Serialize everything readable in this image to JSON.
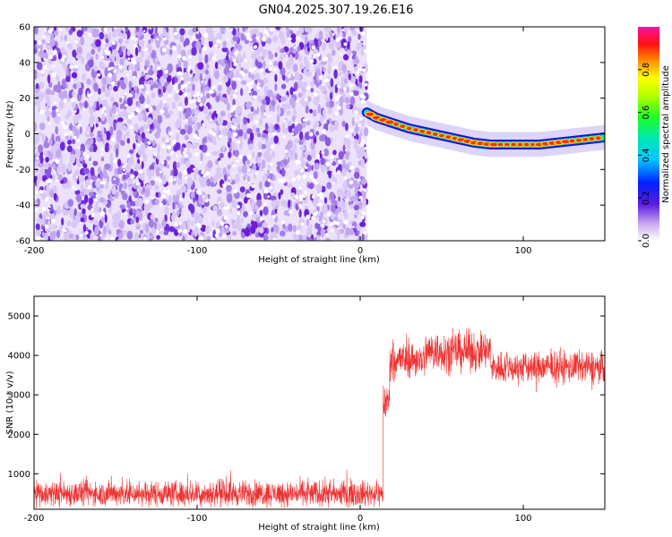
{
  "title": "GN04.2025.307.19.26.E16",
  "chart_data": [
    {
      "type": "heatmap",
      "name": "spectrogram",
      "xlabel": "Height of straight line (km)",
      "ylabel": "Frequency (Hz)",
      "xlim": [
        -200,
        150
      ],
      "ylim": [
        -60,
        60
      ],
      "xticks": [
        -200,
        -100,
        0,
        100
      ],
      "yticks": [
        -60,
        -40,
        -20,
        0,
        20,
        40,
        60
      ],
      "noise_region_x": [
        -200,
        4
      ],
      "signal_track": {
        "x": [
          4,
          10,
          20,
          30,
          40,
          50,
          60,
          70,
          80,
          90,
          100,
          110,
          120,
          130,
          140,
          150
        ],
        "frequency_hz": [
          12,
          9,
          6,
          3,
          1,
          -1,
          -3,
          -5,
          -6,
          -6,
          -6,
          -6,
          -5,
          -4,
          -3,
          -2
        ]
      },
      "colorbar": {
        "label": "Normalized spectral amplitude",
        "range": [
          0,
          1
        ],
        "ticks": [
          0.0,
          0.2,
          0.4,
          0.6,
          0.8
        ],
        "tick_labels": [
          "0.0",
          "0.2",
          "0.4",
          "0.6",
          "0.8"
        ]
      }
    },
    {
      "type": "line",
      "name": "snr",
      "xlabel": "Height of straight line (km)",
      "ylabel": "SNR (10 * v/v)",
      "xlim": [
        -200,
        150
      ],
      "ylim": [
        100,
        5500
      ],
      "xticks": [
        -200,
        -100,
        0,
        100
      ],
      "yticks": [
        1000,
        2000,
        3000,
        4000,
        5000
      ],
      "color": "#ee3333",
      "segments": [
        {
          "x_from": -200,
          "x_to": 14,
          "mean": 500,
          "spread": 350
        },
        {
          "x_from": 14,
          "x_to": 18,
          "mean": 2800,
          "spread": 600
        },
        {
          "x_from": 18,
          "x_to": 40,
          "mean": 3900,
          "spread": 500
        },
        {
          "x_from": 40,
          "x_to": 80,
          "mean": 4100,
          "spread": 550
        },
        {
          "x_from": 80,
          "x_to": 150,
          "mean": 3700,
          "spread": 450
        }
      ]
    }
  ]
}
